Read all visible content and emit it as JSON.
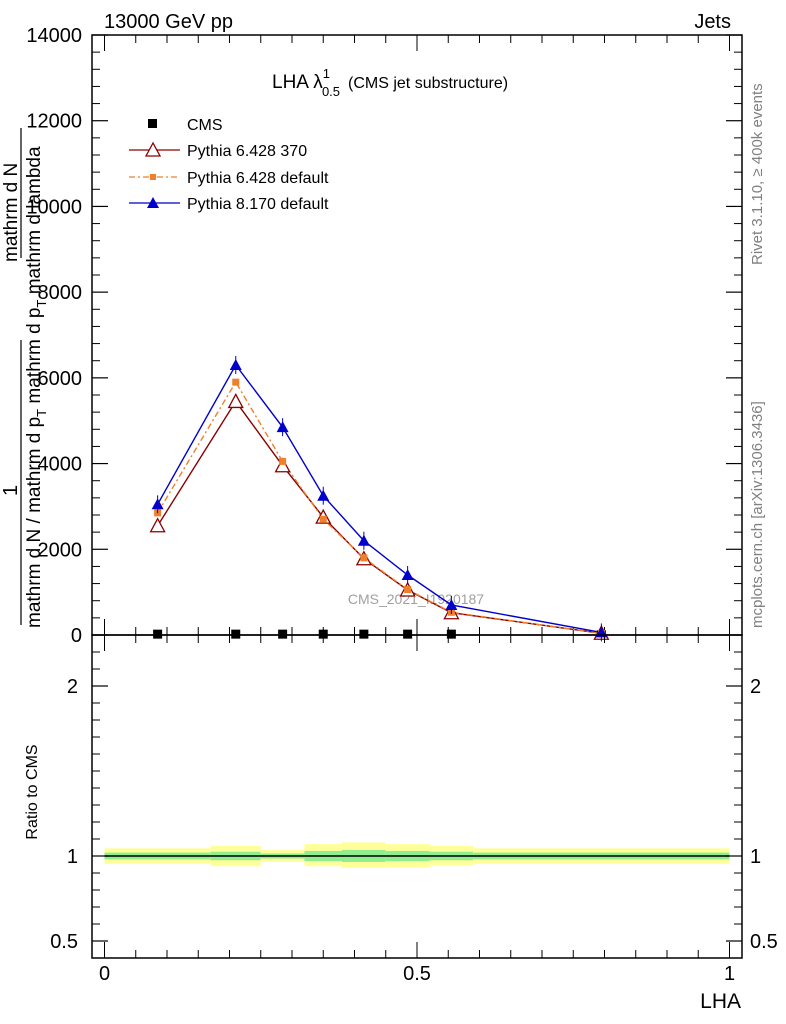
{
  "header": {
    "left": "13000 GeV pp",
    "right": "Jets"
  },
  "side_labels": {
    "rivet": "Rivet 3.1.10, ≥ 400k events",
    "mcplots": "mcplots.cern.ch [arXiv:1306.3436]"
  },
  "watermark": "CMS_2021_I1920187",
  "title": {
    "main": "LHA λ",
    "sup": "1",
    "sub": "0.5",
    "suffix": "(CMS jet substructure)"
  },
  "ylabel_main": {
    "one": "1",
    "num": "mathrm d N",
    "den": "mathrm d N / mathrm d p",
    "den_sub": "T",
    "den2": " mathrm d p",
    "den2_sub": "T",
    "den3": " mathrm d lambda"
  },
  "ylabel_ratio": "Ratio to CMS",
  "xlabel": "LHA",
  "legend": [
    {
      "label": "CMS"
    },
    {
      "label": "Pythia 6.428 370"
    },
    {
      "label": "Pythia 6.428 default"
    },
    {
      "label": "Pythia 8.170 default"
    }
  ],
  "colors": {
    "cms": "#000000",
    "p6_370": "#8b0000",
    "p6_default": "#f07f2c",
    "p8": "#0000cc",
    "band_inner": "#90ee90",
    "band_outer": "#ffff99"
  },
  "chart_data": [
    {
      "type": "line",
      "xlim": [
        -0.02,
        1.02
      ],
      "ylim": [
        0,
        14000
      ],
      "yticks": [
        0,
        2000,
        4000,
        6000,
        8000,
        10000,
        12000,
        14000
      ],
      "ytick_labels": [
        "0",
        "2000",
        "4000",
        "6000",
        "8000",
        "10000",
        "12000",
        "14000"
      ],
      "x": [
        0.085,
        0.21,
        0.285,
        0.35,
        0.415,
        0.485,
        0.555,
        0.795
      ],
      "series": [
        {
          "name": "CMS",
          "values": [
            20,
            20,
            20,
            20,
            20,
            20,
            20,
            5
          ]
        },
        {
          "name": "Pythia 6.428 370",
          "values": [
            2550,
            5450,
            3950,
            2750,
            1780,
            1050,
            520,
            40
          ]
        },
        {
          "name": "Pythia 6.428 default",
          "values": [
            2850,
            5900,
            4050,
            2700,
            1800,
            1060,
            530,
            40
          ]
        },
        {
          "name": "Pythia 8.170 default",
          "values": [
            3050,
            6300,
            4850,
            3250,
            2200,
            1400,
            700,
            60
          ]
        }
      ]
    },
    {
      "type": "area",
      "ylabel": "Ratio to CMS",
      "xlabel": "LHA",
      "xlim": [
        -0.02,
        1.02
      ],
      "ylim": [
        0.4,
        2.3
      ],
      "yticks": [
        0.5,
        1,
        2
      ],
      "ytick_labels": [
        "0.5",
        "1",
        "2"
      ],
      "xticks": [
        0,
        0.5,
        1
      ],
      "xtick_labels": [
        "0",
        "0.5",
        "1"
      ],
      "bins": [
        {
          "x0": 0.0,
          "x1": 0.17,
          "inner": [
            0.98,
            1.02
          ],
          "outer": [
            0.955,
            1.045
          ]
        },
        {
          "x0": 0.17,
          "x1": 0.25,
          "inner": [
            0.975,
            1.025
          ],
          "outer": [
            0.94,
            1.06
          ]
        },
        {
          "x0": 0.25,
          "x1": 0.32,
          "inner": [
            0.985,
            1.015
          ],
          "outer": [
            0.965,
            1.035
          ]
        },
        {
          "x0": 0.32,
          "x1": 0.38,
          "inner": [
            0.97,
            1.03
          ],
          "outer": [
            0.94,
            1.07
          ]
        },
        {
          "x0": 0.38,
          "x1": 0.45,
          "inner": [
            0.965,
            1.035
          ],
          "outer": [
            0.93,
            1.08
          ]
        },
        {
          "x0": 0.45,
          "x1": 0.52,
          "inner": [
            0.97,
            1.03
          ],
          "outer": [
            0.935,
            1.07
          ]
        },
        {
          "x0": 0.52,
          "x1": 0.59,
          "inner": [
            0.975,
            1.025
          ],
          "outer": [
            0.945,
            1.06
          ]
        },
        {
          "x0": 0.59,
          "x1": 1.0,
          "inner": [
            0.98,
            1.02
          ],
          "outer": [
            0.955,
            1.045
          ]
        }
      ]
    }
  ]
}
